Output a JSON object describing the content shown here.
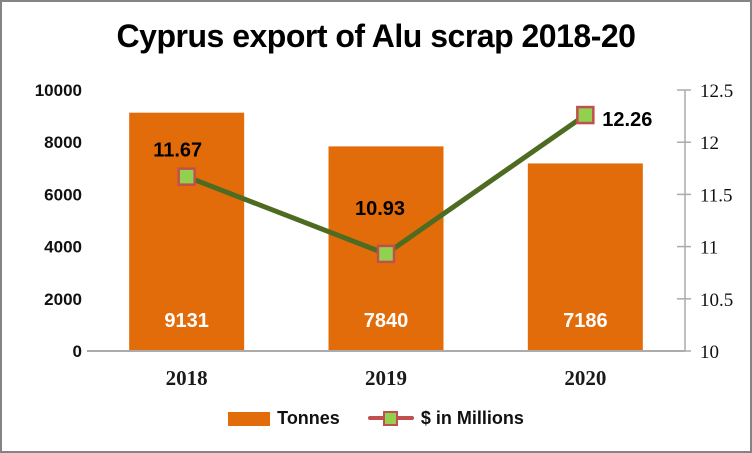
{
  "chart_data": {
    "type": "combo-bar-line",
    "title": "Cyprus export of Alu scrap 2018-20",
    "categories": [
      "2018",
      "2019",
      "2020"
    ],
    "series": [
      {
        "name": "Tonnes",
        "type": "bar",
        "axis": "left",
        "values": [
          9131,
          7840,
          7186
        ],
        "data_labels": [
          "9131",
          "7840",
          "7186"
        ],
        "color": "#E36C0A",
        "label_color": "#FFFFFF"
      },
      {
        "name": "$ in Millions",
        "type": "line",
        "axis": "right",
        "values": [
          11.67,
          10.93,
          12.26
        ],
        "data_labels": [
          "11.67",
          "10.93",
          "12.26"
        ],
        "line_color": "#4E6B22",
        "marker_fill": "#92D050",
        "marker_stroke": "#C0504D",
        "legend_line_color": "#C0504D",
        "label_color": "#000000"
      }
    ],
    "left_axis": {
      "min": 0,
      "max": 10000,
      "tick_step": 2000,
      "tick_labels": [
        "0",
        "2000",
        "4000",
        "6000",
        "8000",
        "10000"
      ]
    },
    "right_axis": {
      "min": 10,
      "max": 12.5,
      "tick_step": 0.5,
      "tick_labels": [
        "10",
        "10.5",
        "11",
        "11.5",
        "12",
        "12.5"
      ]
    },
    "grid": false,
    "legend_position": "bottom",
    "axis_line_color": "#ABABAB"
  }
}
